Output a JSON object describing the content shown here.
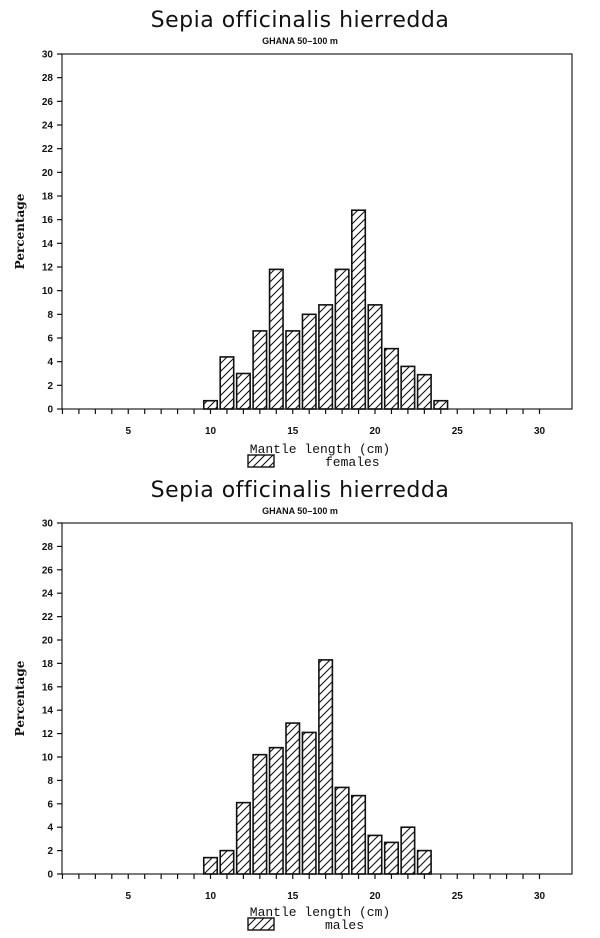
{
  "chart_data": [
    {
      "type": "bar",
      "title": "Sepia officinalis hierredda",
      "subtitle": "GHANA 50–100 m",
      "xlabel": "Mantle length (cm)",
      "ylabel": "Percentage",
      "legend": "females",
      "categories": [
        10,
        11,
        12,
        13,
        14,
        15,
        16,
        17,
        18,
        19,
        20,
        21,
        22,
        23,
        24
      ],
      "values": [
        0.7,
        4.4,
        3.0,
        6.6,
        11.8,
        6.6,
        8.0,
        8.8,
        11.8,
        16.8,
        8.8,
        5.1,
        3.6,
        2.9,
        0.7
      ],
      "xlim": [
        1,
        30
      ],
      "ylim": [
        0,
        30
      ],
      "xticks": [
        5,
        10,
        15,
        20,
        25,
        30
      ],
      "yticks": [
        0,
        2,
        4,
        6,
        8,
        10,
        12,
        14,
        16,
        18,
        20,
        22,
        24,
        26,
        28,
        30
      ],
      "grid": false,
      "legend_position": "bottom-center",
      "fill": "diagonal-hatch"
    },
    {
      "type": "bar",
      "title": "Sepia officinalis hierredda",
      "subtitle": "GHANA 50–100 m",
      "xlabel": "Mantle length (cm)",
      "ylabel": "Percentage",
      "legend": "males",
      "categories": [
        10,
        11,
        12,
        13,
        14,
        15,
        16,
        17,
        18,
        19,
        20,
        21,
        22,
        23
      ],
      "values": [
        1.4,
        2.0,
        6.1,
        10.2,
        10.8,
        12.9,
        12.1,
        18.3,
        7.4,
        6.7,
        3.3,
        2.7,
        4.0,
        2.0
      ],
      "xlim": [
        1,
        30
      ],
      "ylim": [
        0,
        30
      ],
      "xticks": [
        5,
        10,
        15,
        20,
        25,
        30
      ],
      "yticks": [
        0,
        2,
        4,
        6,
        8,
        10,
        12,
        14,
        16,
        18,
        20,
        22,
        24,
        26,
        28,
        30
      ],
      "grid": false,
      "legend_position": "bottom-center",
      "fill": "diagonal-hatch"
    }
  ]
}
